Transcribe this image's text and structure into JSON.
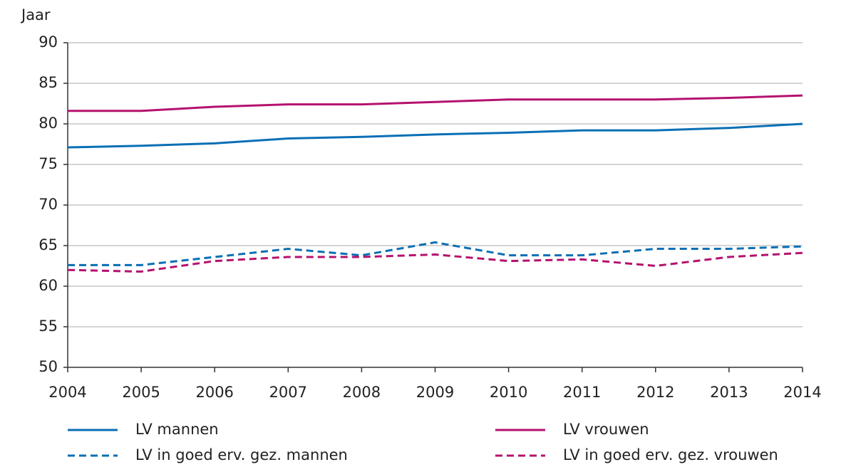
{
  "chart_data": {
    "type": "line",
    "y_label": "Jaar",
    "x": [
      2004,
      2005,
      2006,
      2007,
      2008,
      2009,
      2010,
      2011,
      2012,
      2013,
      2014
    ],
    "xlim": [
      2004,
      2014
    ],
    "xticks": [
      2004,
      2005,
      2006,
      2007,
      2008,
      2009,
      2010,
      2011,
      2012,
      2013,
      2014
    ],
    "ylim": [
      50,
      90
    ],
    "yticks": [
      50,
      55,
      60,
      65,
      70,
      75,
      80,
      85,
      90
    ],
    "grid": true,
    "series": [
      {
        "name": "LV mannen",
        "color": "#0a6fb5",
        "dash": false,
        "values": [
          77.1,
          77.3,
          77.6,
          78.2,
          78.4,
          78.7,
          78.9,
          79.2,
          79.2,
          79.5,
          80.0
        ]
      },
      {
        "name": "LV vrouwen",
        "color": "#b5116e",
        "dash": false,
        "values": [
          81.6,
          81.6,
          82.1,
          82.4,
          82.4,
          82.7,
          83.0,
          83.0,
          83.0,
          83.2,
          83.5
        ]
      },
      {
        "name": "LV in goed erv. gez. mannen",
        "color": "#0a6fb5",
        "dash": true,
        "values": [
          62.6,
          62.6,
          63.6,
          64.6,
          63.8,
          65.4,
          63.8,
          63.8,
          64.6,
          64.6,
          64.9
        ]
      },
      {
        "name": "LV in goed erv. gez. vrouwen",
        "color": "#b5116e",
        "dash": true,
        "values": [
          62.0,
          61.8,
          63.1,
          63.6,
          63.6,
          63.9,
          63.1,
          63.3,
          62.5,
          63.6,
          64.1
        ]
      }
    ]
  }
}
